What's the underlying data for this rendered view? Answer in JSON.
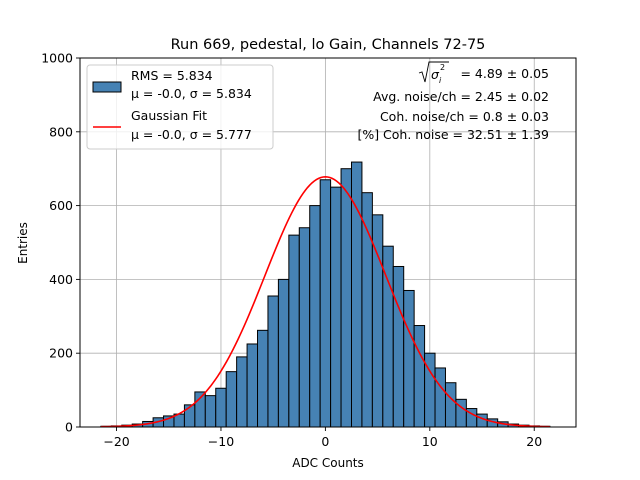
{
  "chart_data": {
    "type": "histogram",
    "title": "Run 669, pedestal, lo Gain, Channels 72-75",
    "xlabel": "ADC Counts",
    "ylabel": "Entries",
    "xlim": [
      -23.5,
      24
    ],
    "ylim": [
      0,
      1000
    ],
    "xticks": [
      -20,
      -10,
      0,
      10,
      20
    ],
    "xtick_labels": [
      "−20",
      "−10",
      "0",
      "10",
      "20"
    ],
    "yticks": [
      0,
      200,
      400,
      600,
      800,
      1000
    ],
    "ytick_labels": [
      "0",
      "200",
      "400",
      "600",
      "800",
      "1000"
    ],
    "grid": true,
    "bin_edges": [
      -21.5,
      -20.5,
      -19.5,
      -18.5,
      -17.5,
      -16.5,
      -15.5,
      -14.5,
      -13.5,
      -12.5,
      -11.5,
      -10.5,
      -9.5,
      -8.5,
      -7.5,
      -6.5,
      -5.5,
      -4.5,
      -3.5,
      -2.5,
      -1.5,
      -0.5,
      0.5,
      1.5,
      2.5,
      3.5,
      4.5,
      5.5,
      6.5,
      7.5,
      8.5,
      9.5,
      10.5,
      11.5,
      12.5,
      13.5,
      14.5,
      15.5,
      16.5,
      17.5,
      18.5,
      19.5,
      20.5,
      21.5
    ],
    "values": [
      2,
      3,
      5,
      8,
      15,
      25,
      30,
      35,
      60,
      95,
      85,
      105,
      150,
      190,
      225,
      262,
      355,
      400,
      520,
      540,
      600,
      670,
      650,
      700,
      718,
      635,
      575,
      490,
      435,
      370,
      275,
      200,
      160,
      120,
      75,
      50,
      35,
      22,
      14,
      8,
      5,
      3,
      2
    ],
    "bar_color": "#4682b4",
    "fit": {
      "mu": 0.0,
      "sigma": 5.777,
      "amplitude": 678,
      "x_range": [
        -21.5,
        21.5
      ],
      "color": "#ff0000"
    },
    "legend": {
      "placement": "top-left",
      "entries": [
        {
          "kind": "patch",
          "color": "#4682b4",
          "line1": "RMS = 5.834",
          "line2": "μ = -0.0, σ = 5.834"
        },
        {
          "kind": "line",
          "color": "#ff0000",
          "line1": "Gaussian Fit",
          "line2": "μ = -0.0, σ = 5.777"
        }
      ]
    },
    "annotations": {
      "sigma_value": "= 4.89 ± 0.05",
      "avg_noise": "Avg. noise/ch = 2.45 ± 0.02",
      "coh_noise": "Coh. noise/ch = 0.8 ± 0.03",
      "pct_coh_noise": "[%] Coh. noise = 32.51 ± 1.39"
    }
  }
}
